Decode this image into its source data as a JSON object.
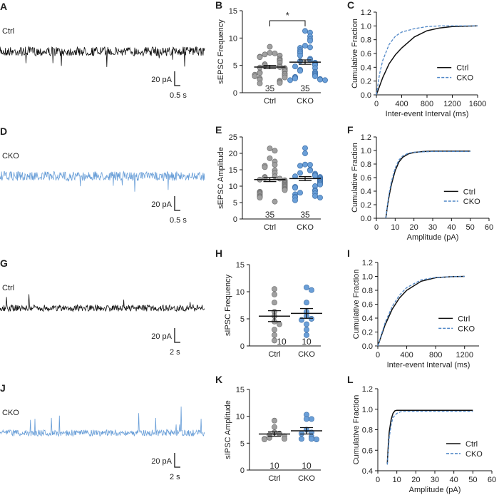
{
  "colors": {
    "ctrl_trace": "#111111",
    "cko_trace": "#6a9fd8",
    "ctrl_dot": "#a0a0a0",
    "cko_dot": "#6a9fd8",
    "cko_line": "#4f86c6"
  },
  "traces": [
    {
      "panel": "A",
      "label": "Ctrl",
      "group": "ctrl",
      "direction": "down",
      "scale_y": "20 pA",
      "scale_x": "0.5 s"
    },
    {
      "panel": "D",
      "label": "CKO",
      "group": "cko",
      "direction": "down",
      "scale_y": "20 pA",
      "scale_x": "0.5 s"
    },
    {
      "panel": "G",
      "label": "Ctrl",
      "group": "ctrl",
      "direction": "up",
      "scale_y": "20 pA",
      "scale_x": "2 s"
    },
    {
      "panel": "J",
      "label": "CKO",
      "group": "cko",
      "direction": "up",
      "scale_y": "20 pA",
      "scale_x": "2 s"
    }
  ],
  "chart_data": [
    {
      "panel": "B",
      "type": "scatter",
      "ylabel": "sEPSC Frequency",
      "categories": [
        "Ctrl",
        "CKO"
      ],
      "ylim": [
        0,
        15
      ],
      "yticks": [
        0,
        5,
        10,
        15
      ],
      "n_labels": [
        "35",
        "35"
      ],
      "significance": "*",
      "series": [
        {
          "name": "Ctrl",
          "values": [
            8.4,
            7.3,
            7.2,
            7.0,
            6.8,
            6.6,
            6.5,
            6.2,
            6.0,
            5.8,
            5.5,
            5.2,
            5.0,
            4.9,
            4.7,
            4.6,
            4.5,
            4.4,
            4.2,
            4.0,
            3.9,
            3.7,
            3.6,
            3.5,
            3.4,
            3.3,
            3.1,
            3.0,
            2.8,
            2.6,
            2.4,
            2.2,
            2.0,
            1.8,
            1.7
          ],
          "mean": 4.7,
          "sem": 0.3
        },
        {
          "name": "CKO",
          "values": [
            11.3,
            11.0,
            10.3,
            9.8,
            9.5,
            8.6,
            8.3,
            8.2,
            7.8,
            7.5,
            7.2,
            6.8,
            6.2,
            6.0,
            5.8,
            5.5,
            5.3,
            5.1,
            5.0,
            4.8,
            4.5,
            4.2,
            4.0,
            3.8,
            3.6,
            3.4,
            3.2,
            3.0,
            2.9,
            2.8,
            2.6,
            2.5,
            2.4,
            2.3,
            2.3
          ],
          "mean": 5.6,
          "sem": 0.4
        }
      ]
    },
    {
      "panel": "C",
      "type": "line",
      "xlabel": "Inter-event Interval (ms)",
      "ylabel": "Cumulative Fraction",
      "xlim": [
        0,
        1600
      ],
      "xticks": [
        0,
        400,
        800,
        1200,
        1600
      ],
      "ylim": [
        0,
        1.2
      ],
      "yticks": [
        "0.0",
        "0.2",
        "0.4",
        "0.6",
        "0.8",
        "1.0",
        "1.2"
      ],
      "legend": "right",
      "series": [
        {
          "name": "Ctrl",
          "points": [
            [
              0,
              0
            ],
            [
              100,
              0.25
            ],
            [
              200,
              0.45
            ],
            [
              300,
              0.58
            ],
            [
              400,
              0.68
            ],
            [
              600,
              0.84
            ],
            [
              800,
              0.93
            ],
            [
              1000,
              0.97
            ],
            [
              1200,
              0.99
            ],
            [
              1600,
              1.0
            ]
          ]
        },
        {
          "name": "CKO",
          "points": [
            [
              0,
              0
            ],
            [
              50,
              0.3
            ],
            [
              100,
              0.5
            ],
            [
              200,
              0.73
            ],
            [
              300,
              0.85
            ],
            [
              400,
              0.91
            ],
            [
              600,
              0.96
            ],
            [
              800,
              0.99
            ],
            [
              1000,
              1.0
            ],
            [
              1600,
              1.0
            ]
          ]
        }
      ]
    },
    {
      "panel": "E",
      "type": "scatter",
      "ylabel": "sEPSC Amplitude",
      "categories": [
        "Ctrl",
        "CKO"
      ],
      "ylim": [
        0,
        25
      ],
      "yticks": [
        0,
        5,
        10,
        15,
        20,
        25
      ],
      "n_labels": [
        "35",
        "35"
      ],
      "series": [
        {
          "name": "Ctrl",
          "values": [
            21.5,
            20.8,
            18.5,
            17.5,
            16.5,
            16.2,
            15.8,
            14.8,
            14.0,
            13.0,
            12.8,
            12.5,
            12.3,
            12.0,
            11.8,
            11.5,
            11.2,
            11.0,
            10.8,
            10.5,
            10.3,
            10.0,
            9.8,
            9.5,
            9.2,
            9.0,
            8.8,
            8.3,
            8.0,
            7.8,
            7.5,
            7.0,
            6.8,
            6.5,
            5.3
          ],
          "mean": 12.0,
          "sem": 0.6
        },
        {
          "name": "CKO",
          "values": [
            21.6,
            20.0,
            16.6,
            16.5,
            16.2,
            15.0,
            14.8,
            14.0,
            13.8,
            13.5,
            13.2,
            13.0,
            12.8,
            12.5,
            12.3,
            12.0,
            11.8,
            11.6,
            11.4,
            11.0,
            10.8,
            10.5,
            10.0,
            9.8,
            9.5,
            8.8,
            8.5,
            8.0,
            7.8,
            7.5,
            7.0,
            6.8,
            6.5,
            6.5,
            5.7
          ],
          "mean": 12.3,
          "sem": 0.6
        }
      ]
    },
    {
      "panel": "F",
      "type": "line",
      "xlabel": "Amplitude (pA)",
      "ylabel": "Cumulative Fraction",
      "xlim": [
        0,
        60
      ],
      "xticks": [
        0,
        10,
        20,
        30,
        40,
        50,
        60
      ],
      "ylim": [
        0,
        1.2
      ],
      "yticks": [
        "0.0",
        "0.2",
        "0.4",
        "0.6",
        "0.8",
        "1.0",
        "1.2"
      ],
      "legend": "right",
      "series": [
        {
          "name": "Ctrl",
          "points": [
            [
              5,
              0
            ],
            [
              6,
              0.2
            ],
            [
              7,
              0.36
            ],
            [
              8,
              0.5
            ],
            [
              10,
              0.7
            ],
            [
              12,
              0.83
            ],
            [
              14,
              0.9
            ],
            [
              17,
              0.95
            ],
            [
              20,
              0.97
            ],
            [
              25,
              0.985
            ],
            [
              30,
              0.99
            ],
            [
              50,
              0.99
            ]
          ]
        },
        {
          "name": "CKO",
          "points": [
            [
              5,
              0
            ],
            [
              6,
              0.22
            ],
            [
              7,
              0.4
            ],
            [
              8,
              0.54
            ],
            [
              10,
              0.74
            ],
            [
              12,
              0.86
            ],
            [
              14,
              0.92
            ],
            [
              17,
              0.96
            ],
            [
              20,
              0.975
            ],
            [
              25,
              0.98
            ],
            [
              30,
              0.985
            ],
            [
              50,
              0.985
            ]
          ]
        }
      ]
    },
    {
      "panel": "H",
      "type": "scatter",
      "ylabel": "sIPSC Frequency",
      "categories": [
        "Ctrl",
        "CKO"
      ],
      "ylim": [
        0,
        15
      ],
      "yticks": [
        0,
        5,
        10,
        15
      ],
      "n_labels": [
        "10",
        "10"
      ],
      "series": [
        {
          "name": "Ctrl",
          "values": [
            10.5,
            9.5,
            8.0,
            6.3,
            5.5,
            4.5,
            4.0,
            3.0,
            2.0,
            1.0
          ],
          "mean": 5.5,
          "sem": 1.0
        },
        {
          "name": "CKO",
          "values": [
            10.8,
            10.3,
            8.0,
            6.3,
            5.5,
            5.0,
            4.8,
            4.0,
            3.0,
            2.0
          ],
          "mean": 6.0,
          "sem": 0.9
        }
      ]
    },
    {
      "panel": "I",
      "type": "line",
      "xlabel": "Inter-event Interval (ms)",
      "ylabel": "Cumulative Fraction",
      "xlim": [
        0,
        1400
      ],
      "xticks": [
        0,
        400,
        800,
        1200
      ],
      "ylim": [
        0,
        1.2
      ],
      "yticks": [
        "0.0",
        "0.2",
        "0.4",
        "0.6",
        "0.8",
        "1.0",
        "1.2"
      ],
      "legend": "right",
      "series": [
        {
          "name": "Ctrl",
          "points": [
            [
              0,
              0
            ],
            [
              100,
              0.3
            ],
            [
              200,
              0.53
            ],
            [
              300,
              0.69
            ],
            [
              400,
              0.8
            ],
            [
              600,
              0.93
            ],
            [
              800,
              0.98
            ],
            [
              1000,
              0.995
            ],
            [
              1200,
              1.0
            ]
          ]
        },
        {
          "name": "CKO",
          "points": [
            [
              0,
              0
            ],
            [
              100,
              0.33
            ],
            [
              200,
              0.57
            ],
            [
              300,
              0.73
            ],
            [
              400,
              0.84
            ],
            [
              600,
              0.95
            ],
            [
              800,
              0.985
            ],
            [
              1000,
              0.995
            ],
            [
              1200,
              1.0
            ]
          ]
        }
      ]
    },
    {
      "panel": "K",
      "type": "scatter",
      "ylabel": "sIPSC Amplitude",
      "categories": [
        "Ctrl",
        "CKO"
      ],
      "ylim": [
        0,
        15
      ],
      "yticks": [
        0,
        5,
        10,
        15
      ],
      "n_labels": [
        "10",
        "10"
      ],
      "series": [
        {
          "name": "Ctrl",
          "values": [
            9.2,
            8.0,
            7.0,
            6.8,
            6.5,
            6.3,
            6.0,
            5.8,
            5.8,
            5.7
          ],
          "mean": 6.7,
          "sem": 0.4
        },
        {
          "name": "CKO",
          "values": [
            10.3,
            9.5,
            9.5,
            7.5,
            7.0,
            6.8,
            6.2,
            5.8,
            5.8,
            5.7
          ],
          "mean": 7.3,
          "sem": 0.6
        }
      ]
    },
    {
      "panel": "L",
      "type": "line",
      "xlabel": "Amplitude (pA)",
      "ylabel": "Cumulative Fraction",
      "xlim": [
        0,
        60
      ],
      "xticks": [
        0,
        10,
        20,
        30,
        40,
        50,
        60
      ],
      "ylim": [
        0.4,
        1.2
      ],
      "yticks": [
        "0.4",
        "0.6",
        "0.8",
        "1.0",
        "1.2"
      ],
      "legend": "right",
      "series": [
        {
          "name": "Ctrl",
          "points": [
            [
              5,
              0.47
            ],
            [
              5.5,
              0.65
            ],
            [
              6,
              0.78
            ],
            [
              7,
              0.9
            ],
            [
              8,
              0.96
            ],
            [
              9,
              0.985
            ],
            [
              10,
              0.99
            ],
            [
              50,
              0.99
            ]
          ]
        },
        {
          "name": "CKO",
          "points": [
            [
              5,
              0.46
            ],
            [
              5.5,
              0.6
            ],
            [
              6,
              0.72
            ],
            [
              7,
              0.85
            ],
            [
              8,
              0.92
            ],
            [
              10,
              0.96
            ],
            [
              12,
              0.975
            ],
            [
              15,
              0.98
            ],
            [
              50,
              0.98
            ]
          ]
        }
      ]
    }
  ]
}
